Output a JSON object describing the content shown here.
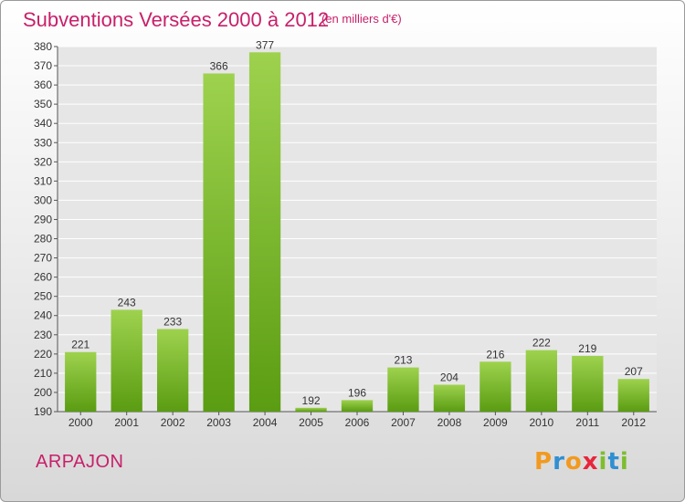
{
  "header": {
    "title": "Subventions Versées 2000 à 2012",
    "subtitle": "(en milliers d'€)"
  },
  "footer": {
    "town": "ARPAJON",
    "brand": "Proxiti"
  },
  "colors": {
    "bar_light": "#9ed24e",
    "bar_dark": "#5a9c12",
    "title": "#c8206a",
    "logo_letters": [
      "#f29a1f",
      "#2f8fd1",
      "#f29a1f",
      "#e8253a",
      "#7cbe2e",
      "#2f8fd1",
      "#7cbe2e"
    ]
  },
  "chart_data": {
    "type": "bar",
    "title": "Subventions Versées 2000 à 2012",
    "categories": [
      "2000",
      "2001",
      "2002",
      "2003",
      "2004",
      "2005",
      "2006",
      "2007",
      "2008",
      "2009",
      "2010",
      "2011",
      "2012"
    ],
    "values": [
      221,
      243,
      233,
      366,
      377,
      192,
      196,
      213,
      204,
      216,
      222,
      219,
      207
    ],
    "ylim": [
      190,
      380
    ],
    "yticks": [
      190,
      200,
      210,
      220,
      230,
      240,
      250,
      260,
      270,
      280,
      290,
      300,
      310,
      320,
      330,
      340,
      350,
      360,
      370,
      380
    ],
    "grid": true,
    "legend": "none"
  }
}
